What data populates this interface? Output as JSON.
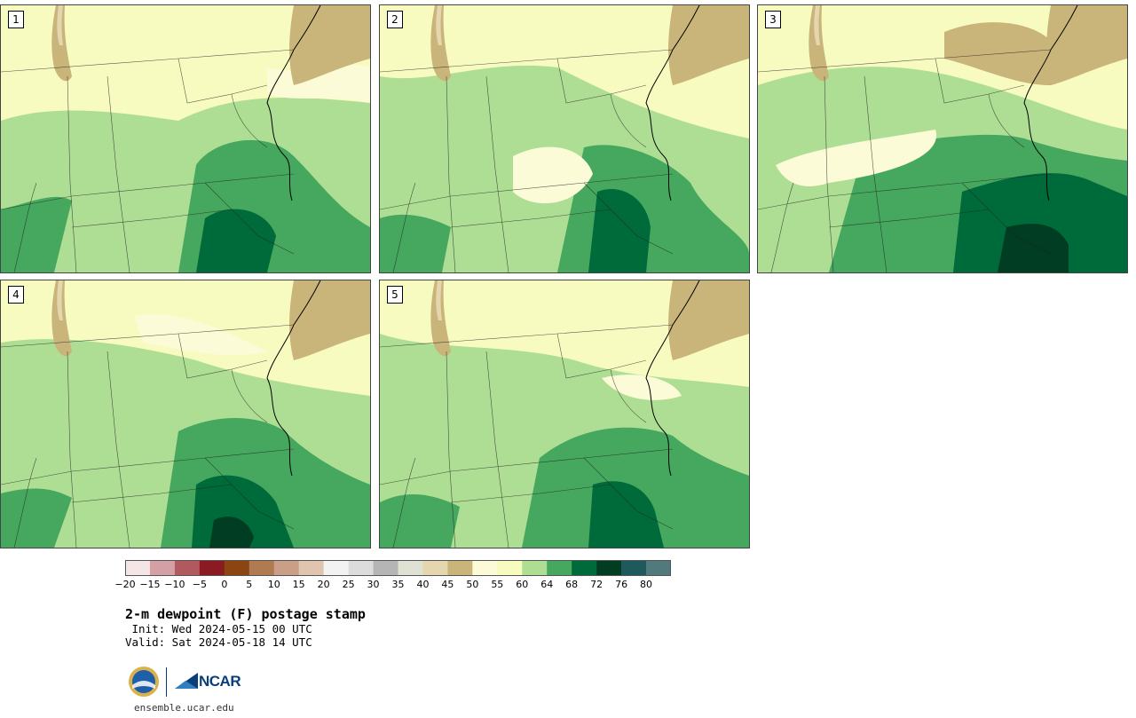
{
  "title": "2-m dewpoint (F) postage stamp",
  "init": " Init: Wed 2024-05-15 00 UTC",
  "valid": "Valid: Sat 2024-05-18 14 UTC",
  "url": "ensemble.ucar.edu",
  "logos": {
    "nsf": "NSF",
    "ncar": "NCAR"
  },
  "panels": [
    {
      "label": "1"
    },
    {
      "label": "2"
    },
    {
      "label": "3"
    },
    {
      "label": "4"
    },
    {
      "label": "5"
    }
  ],
  "colorbar": {
    "ticks": [
      "−20",
      "−15",
      "−10",
      "−5",
      "0",
      "5",
      "10",
      "15",
      "20",
      "25",
      "30",
      "35",
      "40",
      "45",
      "50",
      "55",
      "60",
      "64",
      "68",
      "72",
      "76",
      "80"
    ],
    "colors": [
      "#f4e6e6",
      "#d4a0a6",
      "#b05a60",
      "#8b1a22",
      "#8b4513",
      "#b07a52",
      "#c9a087",
      "#dfc4b0",
      "#f2f2f2",
      "#dcdcdc",
      "#b5b5b5",
      "#dfe2d3",
      "#e6d6b0",
      "#c9b47a",
      "#fbfbd7",
      "#f7fbbf",
      "#aede93",
      "#45a85e",
      "#006b3a",
      "#003d22",
      "#1e5a5c",
      "#507a7b"
    ]
  },
  "map_colors": {
    "dry": "#c9b47a",
    "vlight": "#fbfbd7",
    "light": "#f7fbbf",
    "mid": "#aede93",
    "green": "#45a85e",
    "dark": "#006b3a",
    "darkest": "#003d22",
    "tan_light": "#e6d6b0"
  }
}
